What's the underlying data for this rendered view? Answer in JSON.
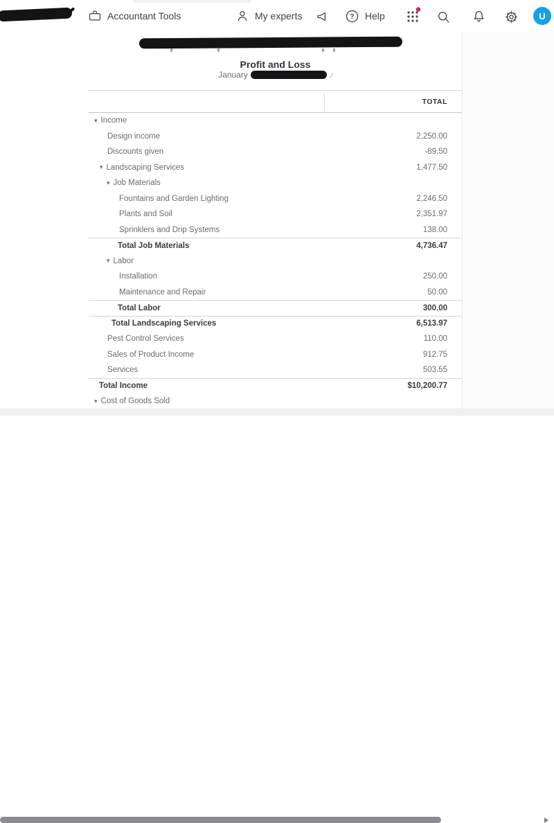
{
  "topbar": {
    "accountant_tools_label": "Accountant Tools",
    "my_experts_label": "My experts",
    "help_label": "Help",
    "avatar_initial": "U"
  },
  "icons": {
    "collapse_arrow": "▾"
  },
  "colors": {
    "avatar_blue": "#14a2e2",
    "badge_pink": "#d6246e",
    "redaction_black": "#141417",
    "scroll_thumb_gray": "#8b8b90"
  },
  "report": {
    "title": "Profit and Loss",
    "date_visible_text": "January",
    "total_column_header": "TOTAL",
    "rows": [
      {
        "label": "Income",
        "value": "",
        "kind": "group",
        "level": 0
      },
      {
        "label": "Design income",
        "value": "2,250.00",
        "kind": "item",
        "level": 1
      },
      {
        "label": "Discounts given",
        "value": "-89.50",
        "kind": "item",
        "level": 1
      },
      {
        "label": "Landscaping Services",
        "value": "1,477.50",
        "kind": "group",
        "level": 1
      },
      {
        "label": "Job Materials",
        "value": "",
        "kind": "group",
        "level": 2
      },
      {
        "label": "Fountains and Garden Lighting",
        "value": "2,246.50",
        "kind": "item",
        "level": 3
      },
      {
        "label": "Plants and Soil",
        "value": "2,351.97",
        "kind": "item",
        "level": 3
      },
      {
        "label": "Sprinklers and Drip Systems",
        "value": "138.00",
        "kind": "item",
        "level": 3
      },
      {
        "label": "Total Job Materials",
        "value": "4,736.47",
        "kind": "total",
        "level": 3
      },
      {
        "label": "Labor",
        "value": "",
        "kind": "group",
        "level": 2
      },
      {
        "label": "Installation",
        "value": "250.00",
        "kind": "item",
        "level": 3
      },
      {
        "label": "Maintenance and Repair",
        "value": "50.00",
        "kind": "item",
        "level": 3
      },
      {
        "label": "Total Labor",
        "value": "300.00",
        "kind": "total",
        "level": 3
      },
      {
        "label": "Total Landscaping Services",
        "value": "6,513.97",
        "kind": "total",
        "level": 2
      },
      {
        "label": "Pest Control Services",
        "value": "110.00",
        "kind": "item",
        "level": 1
      },
      {
        "label": "Sales of Product Income",
        "value": "912.75",
        "kind": "item",
        "level": 1
      },
      {
        "label": "Services",
        "value": "503.55",
        "kind": "item",
        "level": 1
      },
      {
        "label": "Total Income",
        "value": "$10,200.77",
        "kind": "total",
        "level": 1
      },
      {
        "label": "Cost of Goods Sold",
        "value": "",
        "kind": "group",
        "level": 0
      }
    ]
  }
}
